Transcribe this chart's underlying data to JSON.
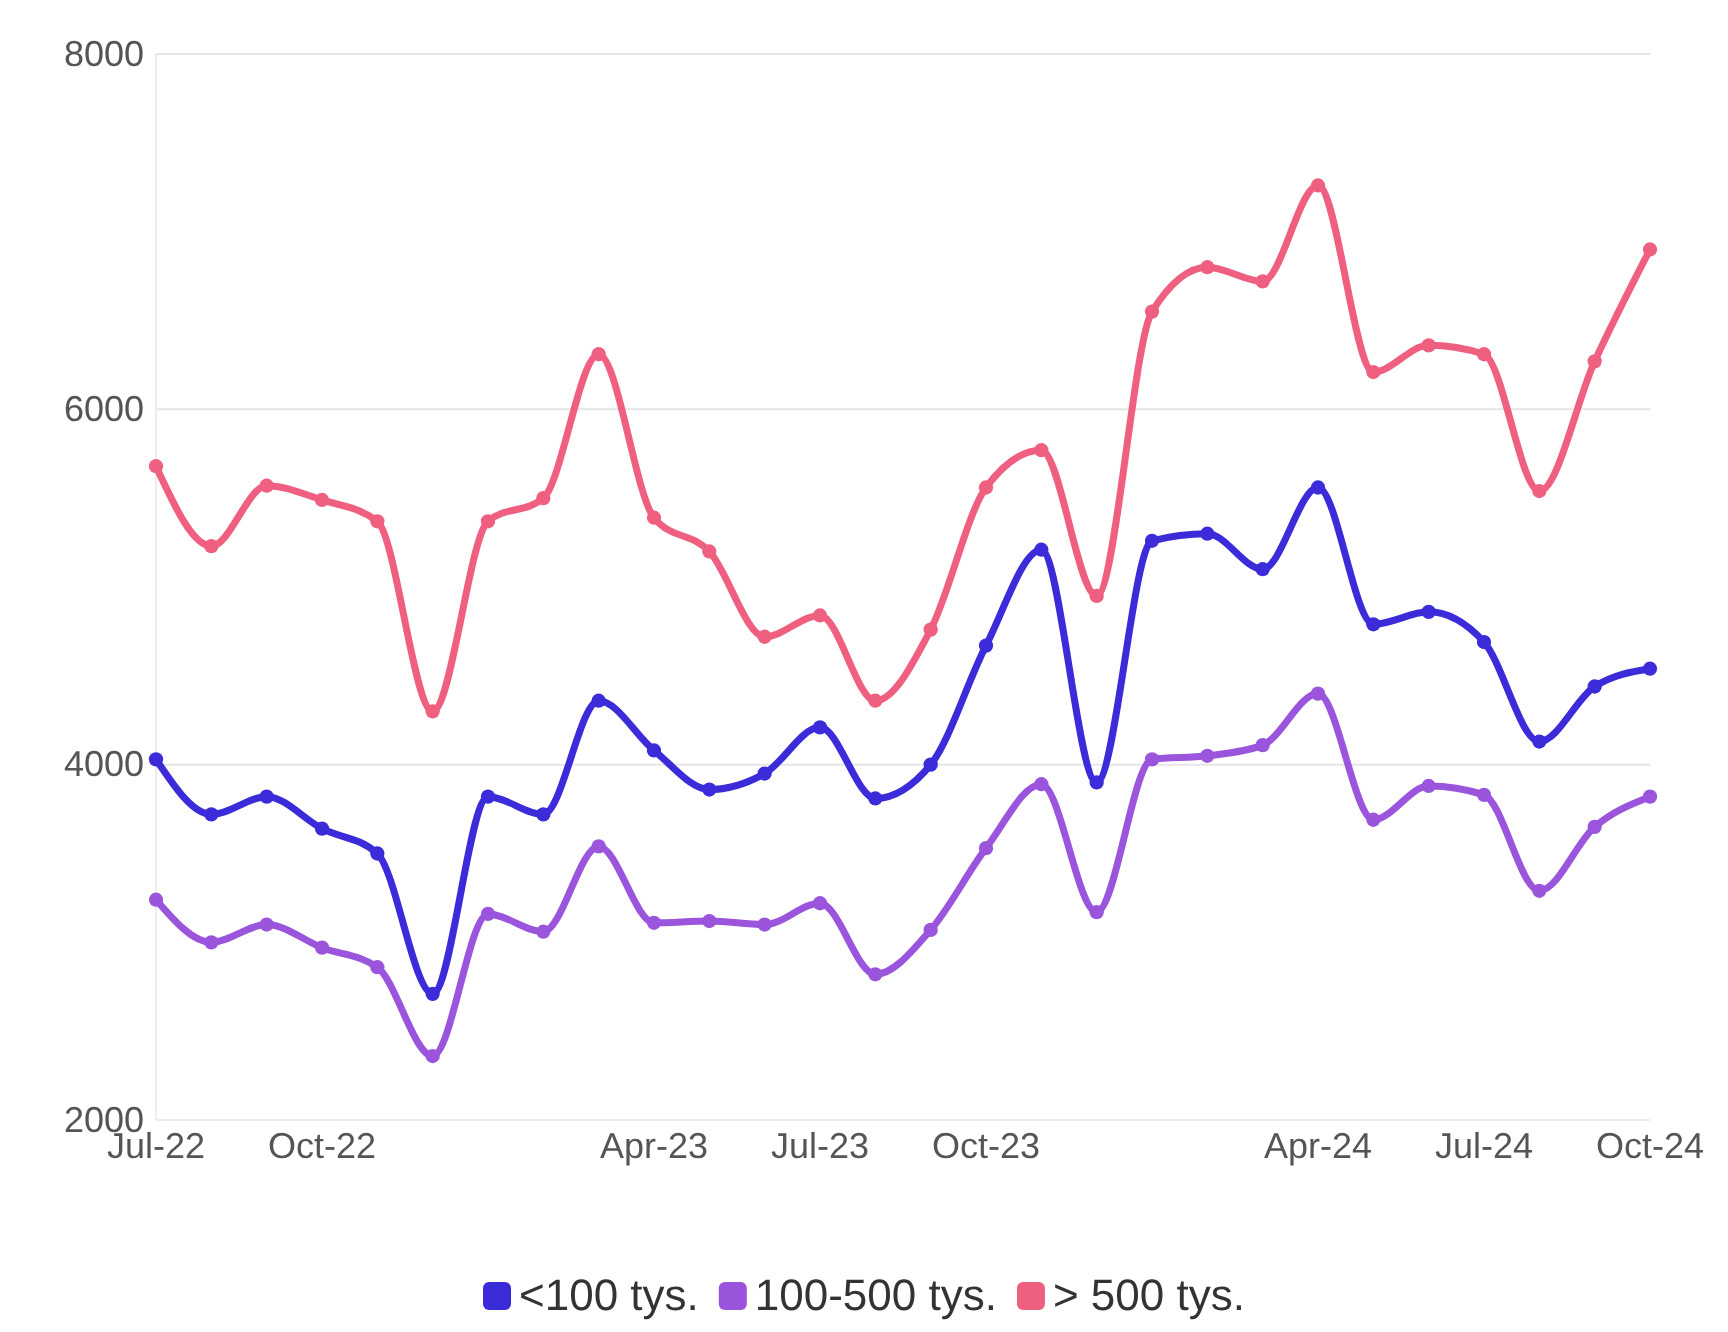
{
  "chart_data": {
    "type": "line",
    "categories": [
      "Jul-22",
      null,
      null,
      "Oct-22",
      null,
      null,
      null,
      null,
      null,
      "Apr-23",
      null,
      null,
      "Jul-23",
      null,
      null,
      "Oct-23",
      null,
      null,
      null,
      null,
      null,
      "Apr-24",
      null,
      null,
      "Jul-24",
      null,
      null,
      "Oct-24"
    ],
    "series": [
      {
        "name": "<100 tys.",
        "color": "#3b2bd8",
        "values": [
          4030,
          3720,
          3820,
          3640,
          3500,
          2710,
          3820,
          3720,
          4360,
          4080,
          3860,
          3950,
          4210,
          3810,
          4000,
          4670,
          5210,
          3900,
          5260,
          5300,
          5100,
          5560,
          4790,
          4860,
          4690,
          4130,
          4440,
          4540
        ]
      },
      {
        "name": "100-500 tys.",
        "color": "#9a55dc",
        "values": [
          3240,
          3000,
          3100,
          2970,
          2860,
          2360,
          3160,
          3060,
          3540,
          3110,
          3120,
          3100,
          3220,
          2820,
          3070,
          3530,
          3890,
          3170,
          4030,
          4050,
          4110,
          4400,
          3690,
          3880,
          3830,
          3290,
          3650,
          3820
        ]
      },
      {
        "name": "> 500 tys.",
        "color": "#ef6080",
        "values": [
          5680,
          5230,
          5570,
          5490,
          5370,
          4300,
          5370,
          5500,
          6310,
          5390,
          5200,
          4720,
          4840,
          4360,
          4760,
          5560,
          5770,
          4950,
          6550,
          6800,
          6720,
          7260,
          6210,
          6360,
          6310,
          5540,
          6270,
          6900
        ]
      }
    ],
    "ylim": [
      2000,
      8000
    ],
    "yticks": [
      2000,
      4000,
      6000,
      8000
    ],
    "grid": "y",
    "legend": "bottom",
    "marker": "circle",
    "line_style": "solid"
  }
}
